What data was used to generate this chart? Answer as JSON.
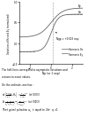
{
  "xlabel": "Np (or 1 nep)",
  "ylabel": "Variations of Hz and Ey (normalized)",
  "xlim": [
    -3,
    3
  ],
  "ylim": [
    -0.5,
    1.0
  ],
  "yticks": [
    -0.5,
    0,
    0.5,
    1.0
  ],
  "xticks": [
    -2,
    0,
    2
  ],
  "annotation_text": "Ngp = +0.025 nep",
  "label_hz": "Harmonic Hz",
  "label_ey": "Harmonic Ey",
  "curve_label_hz": "Hz",
  "curve_label_ey": "Ey",
  "bg_color": "#ffffff",
  "curve_color": "#666666"
}
